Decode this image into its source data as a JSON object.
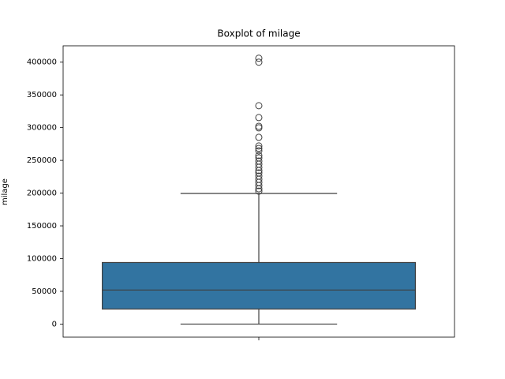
{
  "chart_data": {
    "type": "box",
    "title": "Boxplot of milage",
    "ylabel": "milage",
    "categories": [
      null
    ],
    "color": "#3274a1",
    "ylim": [
      -20000,
      425000
    ],
    "yticks": [
      0,
      50000,
      100000,
      150000,
      200000,
      250000,
      300000,
      350000,
      400000
    ],
    "boxes": [
      {
        "whislo": 0,
        "q1": 23000,
        "median": 52000,
        "q3": 94000,
        "whishi": 199500,
        "fliers": [
          406000,
          400000,
          333500,
          315400,
          302000,
          299700,
          285200,
          272000,
          268300,
          264650,
          257400,
          253800,
          249000,
          244100,
          239300,
          234400,
          230800,
          226000,
          221100,
          216300,
          211500,
          206600,
          203000
        ]
      }
    ]
  }
}
